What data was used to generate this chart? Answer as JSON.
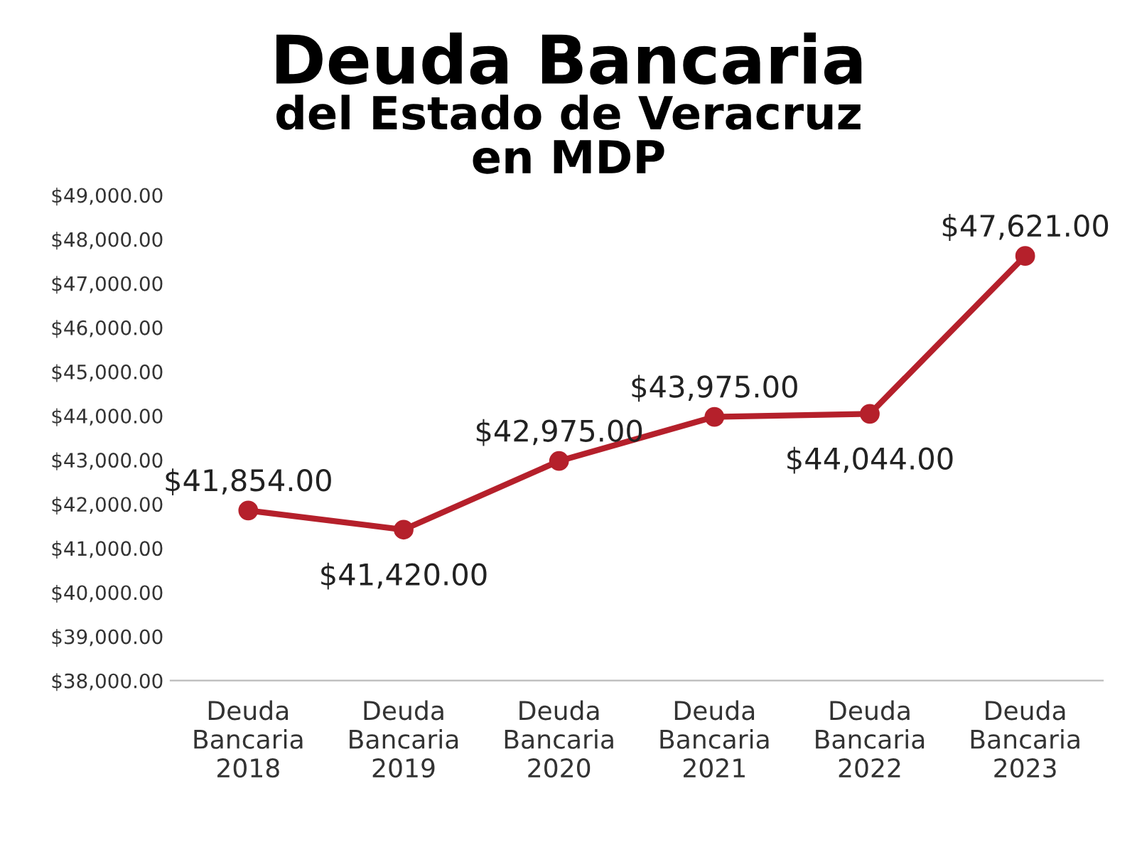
{
  "chart_data": {
    "type": "line",
    "title": "Deuda Bancaria",
    "subtitle": "del Estado de Veracruz\nen MDP",
    "categories": [
      "Deuda\nBancaria\n2018",
      "Deuda\nBancaria\n2019",
      "Deuda\nBancaria\n2020",
      "Deuda\nBancaria\n2021",
      "Deuda\nBancaria\n2022",
      "Deuda\nBancaria\n2023"
    ],
    "series": [
      {
        "color": "#b5202b",
        "values": [
          41854,
          41420,
          42975,
          43975,
          44044,
          47621
        ],
        "value_labels": [
          "$41,854.00",
          "$41,420.00",
          "$42,975.00",
          "$43,975.00",
          "$44,044.00",
          "$47,621.00"
        ]
      }
    ],
    "ylim": [
      38000,
      49000
    ],
    "yticks": [
      {
        "value": 38000,
        "label": "$38,000.00"
      },
      {
        "value": 39000,
        "label": "$39,000.00"
      },
      {
        "value": 40000,
        "label": "$40,000.00"
      },
      {
        "value": 41000,
        "label": "$41,000.00"
      },
      {
        "value": 42000,
        "label": "$42,000.00"
      },
      {
        "value": 43000,
        "label": "$43,000.00"
      },
      {
        "value": 44000,
        "label": "$44,000.00"
      },
      {
        "value": 45000,
        "label": "$45,000.00"
      },
      {
        "value": 46000,
        "label": "$46,000.00"
      },
      {
        "value": 47000,
        "label": "$47,000.00"
      },
      {
        "value": 48000,
        "label": "$48,000.00"
      },
      {
        "value": 49000,
        "label": "$49,000.00"
      }
    ],
    "marker": "circle",
    "line_style": "solid",
    "grid": false,
    "legend": false
  }
}
